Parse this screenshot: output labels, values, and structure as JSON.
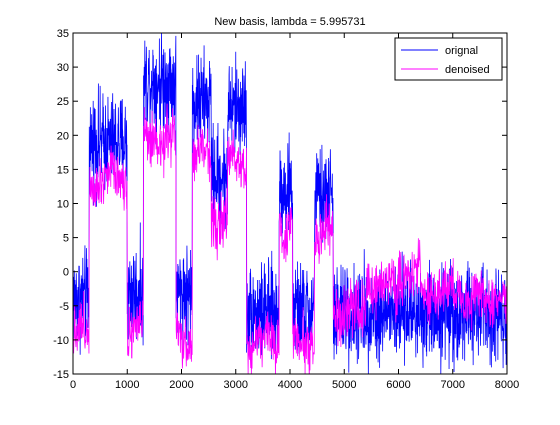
{
  "chart_data": {
    "type": "line",
    "title": "New basis, lambda = 5.995731",
    "xlabel": "",
    "ylabel": "",
    "xlim": [
      0,
      8000
    ],
    "ylim": [
      -15,
      35
    ],
    "xticks": [
      0,
      1000,
      2000,
      3000,
      4000,
      5000,
      6000,
      7000,
      8000
    ],
    "yticks": [
      -15,
      -10,
      -5,
      0,
      5,
      10,
      15,
      20,
      25,
      30,
      35
    ],
    "xtick_labels": [
      "0",
      "1000",
      "2000",
      "3000",
      "4000",
      "5000",
      "6000",
      "7000",
      "8000"
    ],
    "ytick_labels": [
      "-15",
      "-10",
      "-5",
      "0",
      "5",
      "10",
      "15",
      "20",
      "25",
      "30",
      "35"
    ],
    "grid": false,
    "legend_position": "top-right",
    "series": [
      {
        "name": "orignal",
        "color": "#0000ff",
        "noise_amplitude": 3.5,
        "segments": [
          {
            "x0": 0,
            "x1": 300,
            "level": -4
          },
          {
            "x0": 300,
            "x1": 1000,
            "level": 19
          },
          {
            "x0": 1000,
            "x1": 1300,
            "level": -3
          },
          {
            "x0": 1300,
            "x1": 1900,
            "level": 28
          },
          {
            "x0": 1900,
            "x1": 2200,
            "level": -3
          },
          {
            "x0": 2200,
            "x1": 2550,
            "level": 25
          },
          {
            "x0": 2550,
            "x1": 2850,
            "level": 14
          },
          {
            "x0": 2850,
            "x1": 3200,
            "level": 24
          },
          {
            "x0": 3200,
            "x1": 3800,
            "level": -6
          },
          {
            "x0": 3800,
            "x1": 4050,
            "level": 12
          },
          {
            "x0": 4050,
            "x1": 4450,
            "level": -6
          },
          {
            "x0": 4450,
            "x1": 4800,
            "level": 11
          },
          {
            "x0": 4800,
            "x1": 8000,
            "level": -6
          }
        ]
      },
      {
        "name": "denoised",
        "color": "#ff00ff",
        "noise_amplitude": 2.0,
        "segments": [
          {
            "x0": 0,
            "x1": 300,
            "level": -9
          },
          {
            "x0": 300,
            "x1": 1000,
            "level": 14
          },
          {
            "x0": 1000,
            "x1": 1300,
            "level": -8
          },
          {
            "x0": 1300,
            "x1": 1900,
            "level": 19
          },
          {
            "x0": 1900,
            "x1": 2200,
            "level": -10
          },
          {
            "x0": 2200,
            "x1": 2550,
            "level": 17
          },
          {
            "x0": 2550,
            "x1": 2850,
            "level": 8
          },
          {
            "x0": 2850,
            "x1": 3200,
            "level": 16
          },
          {
            "x0": 3200,
            "x1": 3800,
            "level": -10
          },
          {
            "x0": 3800,
            "x1": 4050,
            "level": 6
          },
          {
            "x0": 4050,
            "x1": 4450,
            "level": -10
          },
          {
            "x0": 4450,
            "x1": 4800,
            "level": 5
          },
          {
            "x0": 4800,
            "x1": 5400,
            "level": -6
          },
          {
            "x0": 5400,
            "x1": 6000,
            "level": -2
          },
          {
            "x0": 6000,
            "x1": 6400,
            "level": 0
          },
          {
            "x0": 6400,
            "x1": 7200,
            "level": -3
          },
          {
            "x0": 7200,
            "x1": 8000,
            "level": -4
          }
        ]
      }
    ]
  }
}
